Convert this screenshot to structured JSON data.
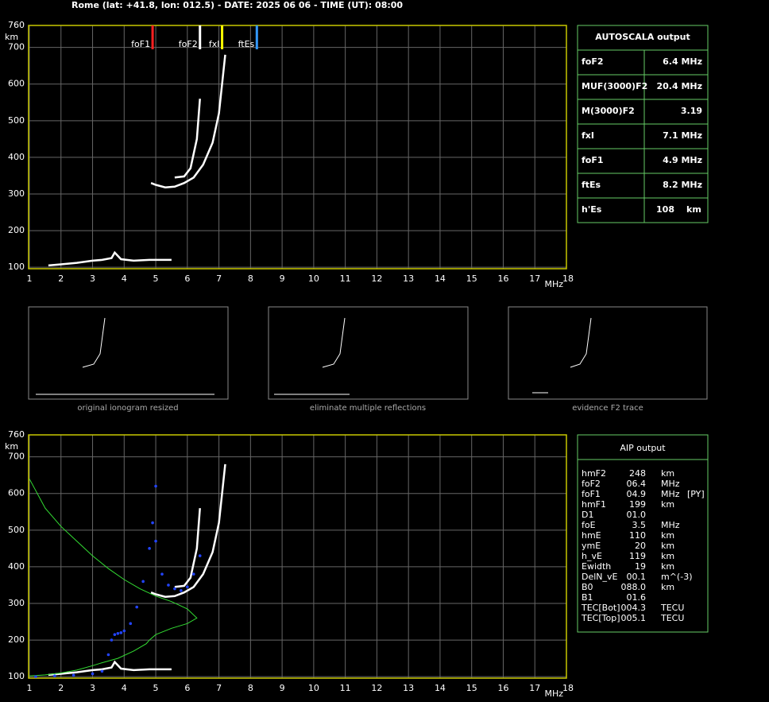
{
  "header": {
    "title": "Rome (lat: +41.8, lon: 012.5) - DATE: 2025 06 06 - TIME (UT): 08:00"
  },
  "chart_data": [
    {
      "type": "line",
      "xlim": [
        1,
        18
      ],
      "ylim": [
        96,
        760
      ],
      "xticks": [
        1,
        2,
        3,
        4,
        5,
        6,
        7,
        8,
        9,
        10,
        11,
        12,
        13,
        14,
        15,
        16,
        17,
        18
      ],
      "yticks": [
        100,
        200,
        300,
        400,
        500,
        600,
        700,
        760
      ],
      "x_label": "MHz",
      "y_label": "km",
      "grid": true,
      "series": [
        {
          "color": "#ffffff",
          "x": [
            1.6,
            2,
            2.5,
            3,
            3.3,
            3.6,
            3.7,
            3.9,
            4.3,
            4.8,
            5.5
          ],
          "values": [
            105,
            108,
            112,
            118,
            120,
            125,
            140,
            122,
            118,
            120,
            120
          ]
        },
        {
          "color": "#ffffff",
          "x": [
            4.85,
            5.0,
            5.3,
            5.6,
            5.9,
            6.2,
            6.5,
            6.8,
            7.0,
            7.2
          ],
          "values": [
            330,
            325,
            318,
            320,
            330,
            345,
            380,
            440,
            520,
            680
          ]
        },
        {
          "color": "#ffffff",
          "x": [
            5.6,
            5.9,
            6.1,
            6.3,
            6.4
          ],
          "values": [
            345,
            348,
            370,
            450,
            560
          ]
        }
      ],
      "markers": [
        {
          "name": "foF1",
          "value": 4.9,
          "color": "#ff2020"
        },
        {
          "name": "foF2",
          "value": 6.4,
          "color": "#ffffff"
        },
        {
          "name": "fxI",
          "value": 7.1,
          "color": "#ffff00"
        },
        {
          "name": "ftEs",
          "value": 8.2,
          "color": "#3399ff"
        }
      ]
    },
    {
      "type": "line",
      "xlim": [
        1,
        18
      ],
      "ylim": [
        96,
        760
      ],
      "xticks": [
        1,
        2,
        3,
        4,
        5,
        6,
        7,
        8,
        9,
        10,
        11,
        12,
        13,
        14,
        15,
        16,
        17,
        18
      ],
      "yticks": [
        100,
        200,
        300,
        400,
        500,
        600,
        700,
        760
      ],
      "x_label": "MHz",
      "y_label": "km",
      "grid": true,
      "series": [
        {
          "color": "#ffffff",
          "x": [
            1.6,
            2,
            2.5,
            3,
            3.3,
            3.6,
            3.7,
            3.9,
            4.3,
            4.8,
            5.5
          ],
          "values": [
            105,
            108,
            112,
            118,
            120,
            125,
            140,
            122,
            118,
            120,
            120
          ]
        },
        {
          "color": "#ffffff",
          "x": [
            4.85,
            5.0,
            5.3,
            5.6,
            5.9,
            6.2,
            6.5,
            6.8,
            7.0,
            7.2
          ],
          "values": [
            330,
            325,
            318,
            320,
            330,
            345,
            380,
            440,
            520,
            680
          ]
        },
        {
          "color": "#ffffff",
          "x": [
            5.6,
            5.9,
            6.1,
            6.3,
            6.4
          ],
          "values": [
            345,
            348,
            370,
            450,
            560
          ]
        },
        {
          "color": "#33dd33",
          "style": "thin",
          "x": [
            1,
            1.5,
            2,
            2.5,
            3,
            3.5,
            4,
            4.5,
            5,
            5.5,
            6,
            6.3,
            6.0,
            5.5,
            5.0,
            4.8,
            4.7,
            4.3,
            3.8,
            3.3,
            3.0,
            2.5,
            2,
            1.5,
            1
          ],
          "values": [
            640,
            560,
            510,
            470,
            430,
            395,
            365,
            340,
            320,
            305,
            285,
            260,
            245,
            232,
            215,
            200,
            190,
            170,
            150,
            138,
            130,
            118,
            110,
            105,
            102
          ]
        },
        {
          "color": "#2244ff",
          "style": "dots",
          "x": [
            1.2,
            1.8,
            2.4,
            3.0,
            3.3,
            3.5,
            3.6,
            3.7,
            3.8,
            3.9,
            4.0,
            4.2,
            4.4,
            4.6,
            4.8,
            4.9,
            5.0
          ],
          "values": [
            100,
            102,
            104,
            108,
            115,
            160,
            200,
            215,
            218,
            220,
            225,
            245,
            290,
            360,
            450,
            520,
            620
          ]
        },
        {
          "color": "#2244ff",
          "style": "dots",
          "x": [
            5.0,
            5.2,
            5.4,
            5.6,
            5.8,
            6.0,
            6.2,
            6.4
          ],
          "values": [
            470,
            380,
            350,
            340,
            335,
            345,
            380,
            430
          ]
        }
      ]
    }
  ],
  "thumbnails": [
    "original ionogram resized",
    "eliminate multiple reflections",
    "evidence F2 trace"
  ],
  "autoscala": {
    "title": "AUTOSCALA output",
    "rows": [
      {
        "label": "foF2",
        "value": "6.4 MHz",
        "color": "#ffffff"
      },
      {
        "label": "MUF(3000)F2",
        "value": "20.4 MHz",
        "color": "#ffffff"
      },
      {
        "label": "M(3000)F2",
        "value": "3.19",
        "color": "#ffffff"
      },
      {
        "label": "fxI",
        "value": "7.1 MHz",
        "color": "#ffff00"
      },
      {
        "label": "foF1",
        "value": "4.9 MHz",
        "color": "#ff2020"
      },
      {
        "label": "ftEs",
        "value": "8.2 MHz",
        "color": "#3399ff"
      },
      {
        "label": "h'Es",
        "value": "108",
        "unit": "km",
        "color": "#ffffff"
      }
    ]
  },
  "aip": {
    "title": "AIP output",
    "rows": [
      [
        "hmF2",
        "248",
        "km"
      ],
      [
        "foF2",
        "06.4",
        "MHz"
      ],
      [
        "foF1",
        "04.9",
        "MHz",
        "[PY]"
      ],
      [
        "hmF1",
        "199",
        "km"
      ],
      [
        "D1",
        "01.0"
      ],
      [
        "foE",
        "3.5",
        "MHz"
      ],
      [
        "hmE",
        "110",
        "km"
      ],
      [
        "ymE",
        "20",
        "km"
      ],
      [
        "h_vE",
        "119",
        "km"
      ],
      [
        "Ewidth",
        "19",
        "km"
      ],
      [
        "DelN_vE",
        "00.1",
        "m^(-3)"
      ],
      [
        "B0",
        "088.0",
        "km"
      ],
      [
        "B1",
        "01.6"
      ],
      [
        "TEC[Bot]",
        "004.3",
        "TECU"
      ],
      [
        "TEC[Top]",
        "005.1",
        "TECU"
      ]
    ]
  }
}
